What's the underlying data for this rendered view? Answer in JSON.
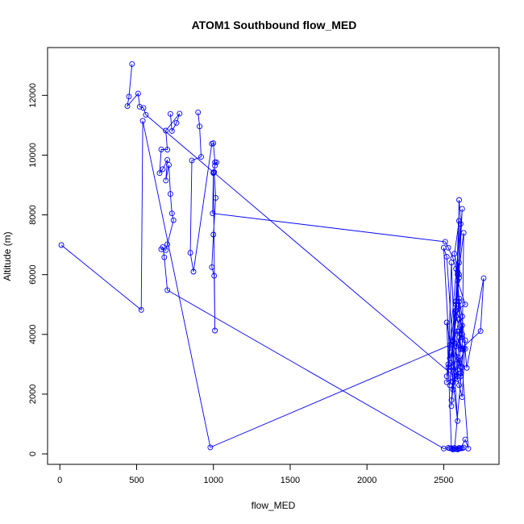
{
  "chart_data": {
    "type": "line",
    "title": "ATOM1 Southbound flow_MED",
    "xlabel": "flow_MED",
    "ylabel": "Altitude (m)",
    "xlim": [
      -80,
      2860
    ],
    "ylim": [
      -350,
      13600
    ],
    "xticks": [
      0,
      500,
      1000,
      1500,
      2000,
      2500
    ],
    "yticks": [
      0,
      2000,
      4000,
      6000,
      8000,
      10000,
      12000
    ],
    "grid": false,
    "line_color": "#0000FF",
    "marker": "open-circle",
    "series": [
      {
        "x": [
          470,
          450,
          440,
          510,
          520,
          545,
          560,
          2590,
          2560,
          2550,
          2580,
          2600,
          2610,
          2520,
          2550,
          2570,
          2600,
          2570,
          2590,
          2540,
          2600,
          2580,
          2620,
          2550,
          2580,
          2600,
          2590,
          2610,
          2570,
          2550,
          2530,
          2600,
          2620,
          2560,
          2600,
          2620,
          2580,
          2590,
          2600,
          2620,
          2630,
          2590,
          2640,
          2580,
          2600,
          2610,
          2520,
          2530,
          2600,
          2620
        ],
        "y": [
          13050,
          11960,
          11640,
          12060,
          11620,
          11580,
          11350,
          2500,
          2400,
          1600,
          5000,
          8500,
          7700,
          2600,
          3400,
          3700,
          7800,
          6700,
          6100,
          2300,
          5900,
          4800,
          4300,
          2900,
          5100,
          6400,
          6000,
          3500,
          3700,
          6400,
          3000,
          6000,
          8200,
          3800,
          5100,
          4000,
          3600,
          2600,
          3900,
          3500,
          7400,
          5800,
          5000,
          4800,
          4100,
          2700,
          2400,
          2900,
          4500,
          3900
        ]
      },
      {
        "x": [
          720,
          730,
          760,
          780,
          690,
          700,
          660,
          650,
          670,
          700,
          690,
          710,
          720,
          730,
          740,
          700,
          690,
          660,
          670,
          680,
          700,
          2500,
          2530,
          2560,
          2540,
          2570,
          2590,
          2600,
          2620,
          2630,
          2580,
          2560,
          2600,
          2610,
          2640,
          2660,
          2620,
          2590,
          2550,
          2570
        ],
        "y": [
          11380,
          10810,
          11080,
          11390,
          10820,
          10180,
          10190,
          9400,
          9530,
          9840,
          9150,
          9670,
          8700,
          8050,
          7820,
          7020,
          6820,
          6850,
          6920,
          6580,
          5480,
          180,
          200,
          160,
          190,
          200,
          150,
          170,
          190,
          210,
          160,
          150,
          200,
          190,
          480,
          180,
          2900,
          3150,
          1800,
          2600
        ]
      },
      {
        "x": [
          900,
          910,
          920,
          860,
          850,
          870,
          990,
          1000,
          1010,
          1020,
          1010,
          1000,
          1005,
          1015,
          1000,
          990,
          1005,
          1010,
          1000,
          995,
          2510,
          2530,
          2560,
          2580,
          2600,
          2620,
          2650,
          2760,
          2740,
          2620,
          2640,
          2600,
          2610,
          2550,
          2590,
          2520,
          2500,
          2540
        ],
        "y": [
          11430,
          10960,
          9940,
          9820,
          6730,
          6100,
          10380,
          10400,
          9760,
          9760,
          9650,
          9420,
          9430,
          8570,
          7340,
          6250,
          5960,
          4130,
          9400,
          8050,
          7100,
          6900,
          6550,
          6200,
          5200,
          4600,
          2880,
          5880,
          4110,
          3540,
          3520,
          3050,
          2600,
          2900,
          1100,
          6600,
          6900,
          3200
        ]
      },
      {
        "x": [
          10,
          530,
          540,
          980,
          2540,
          2560,
          2590,
          2610,
          2630,
          2570,
          2550,
          2520,
          2580,
          2600,
          2620,
          2640,
          2590,
          2560
        ],
        "y": [
          6990,
          4820,
          11150,
          220,
          3640,
          3760,
          3240,
          2920,
          3540,
          160,
          190,
          4400,
          2750,
          2300,
          1900,
          3800,
          4100,
          2150
        ]
      }
    ]
  }
}
